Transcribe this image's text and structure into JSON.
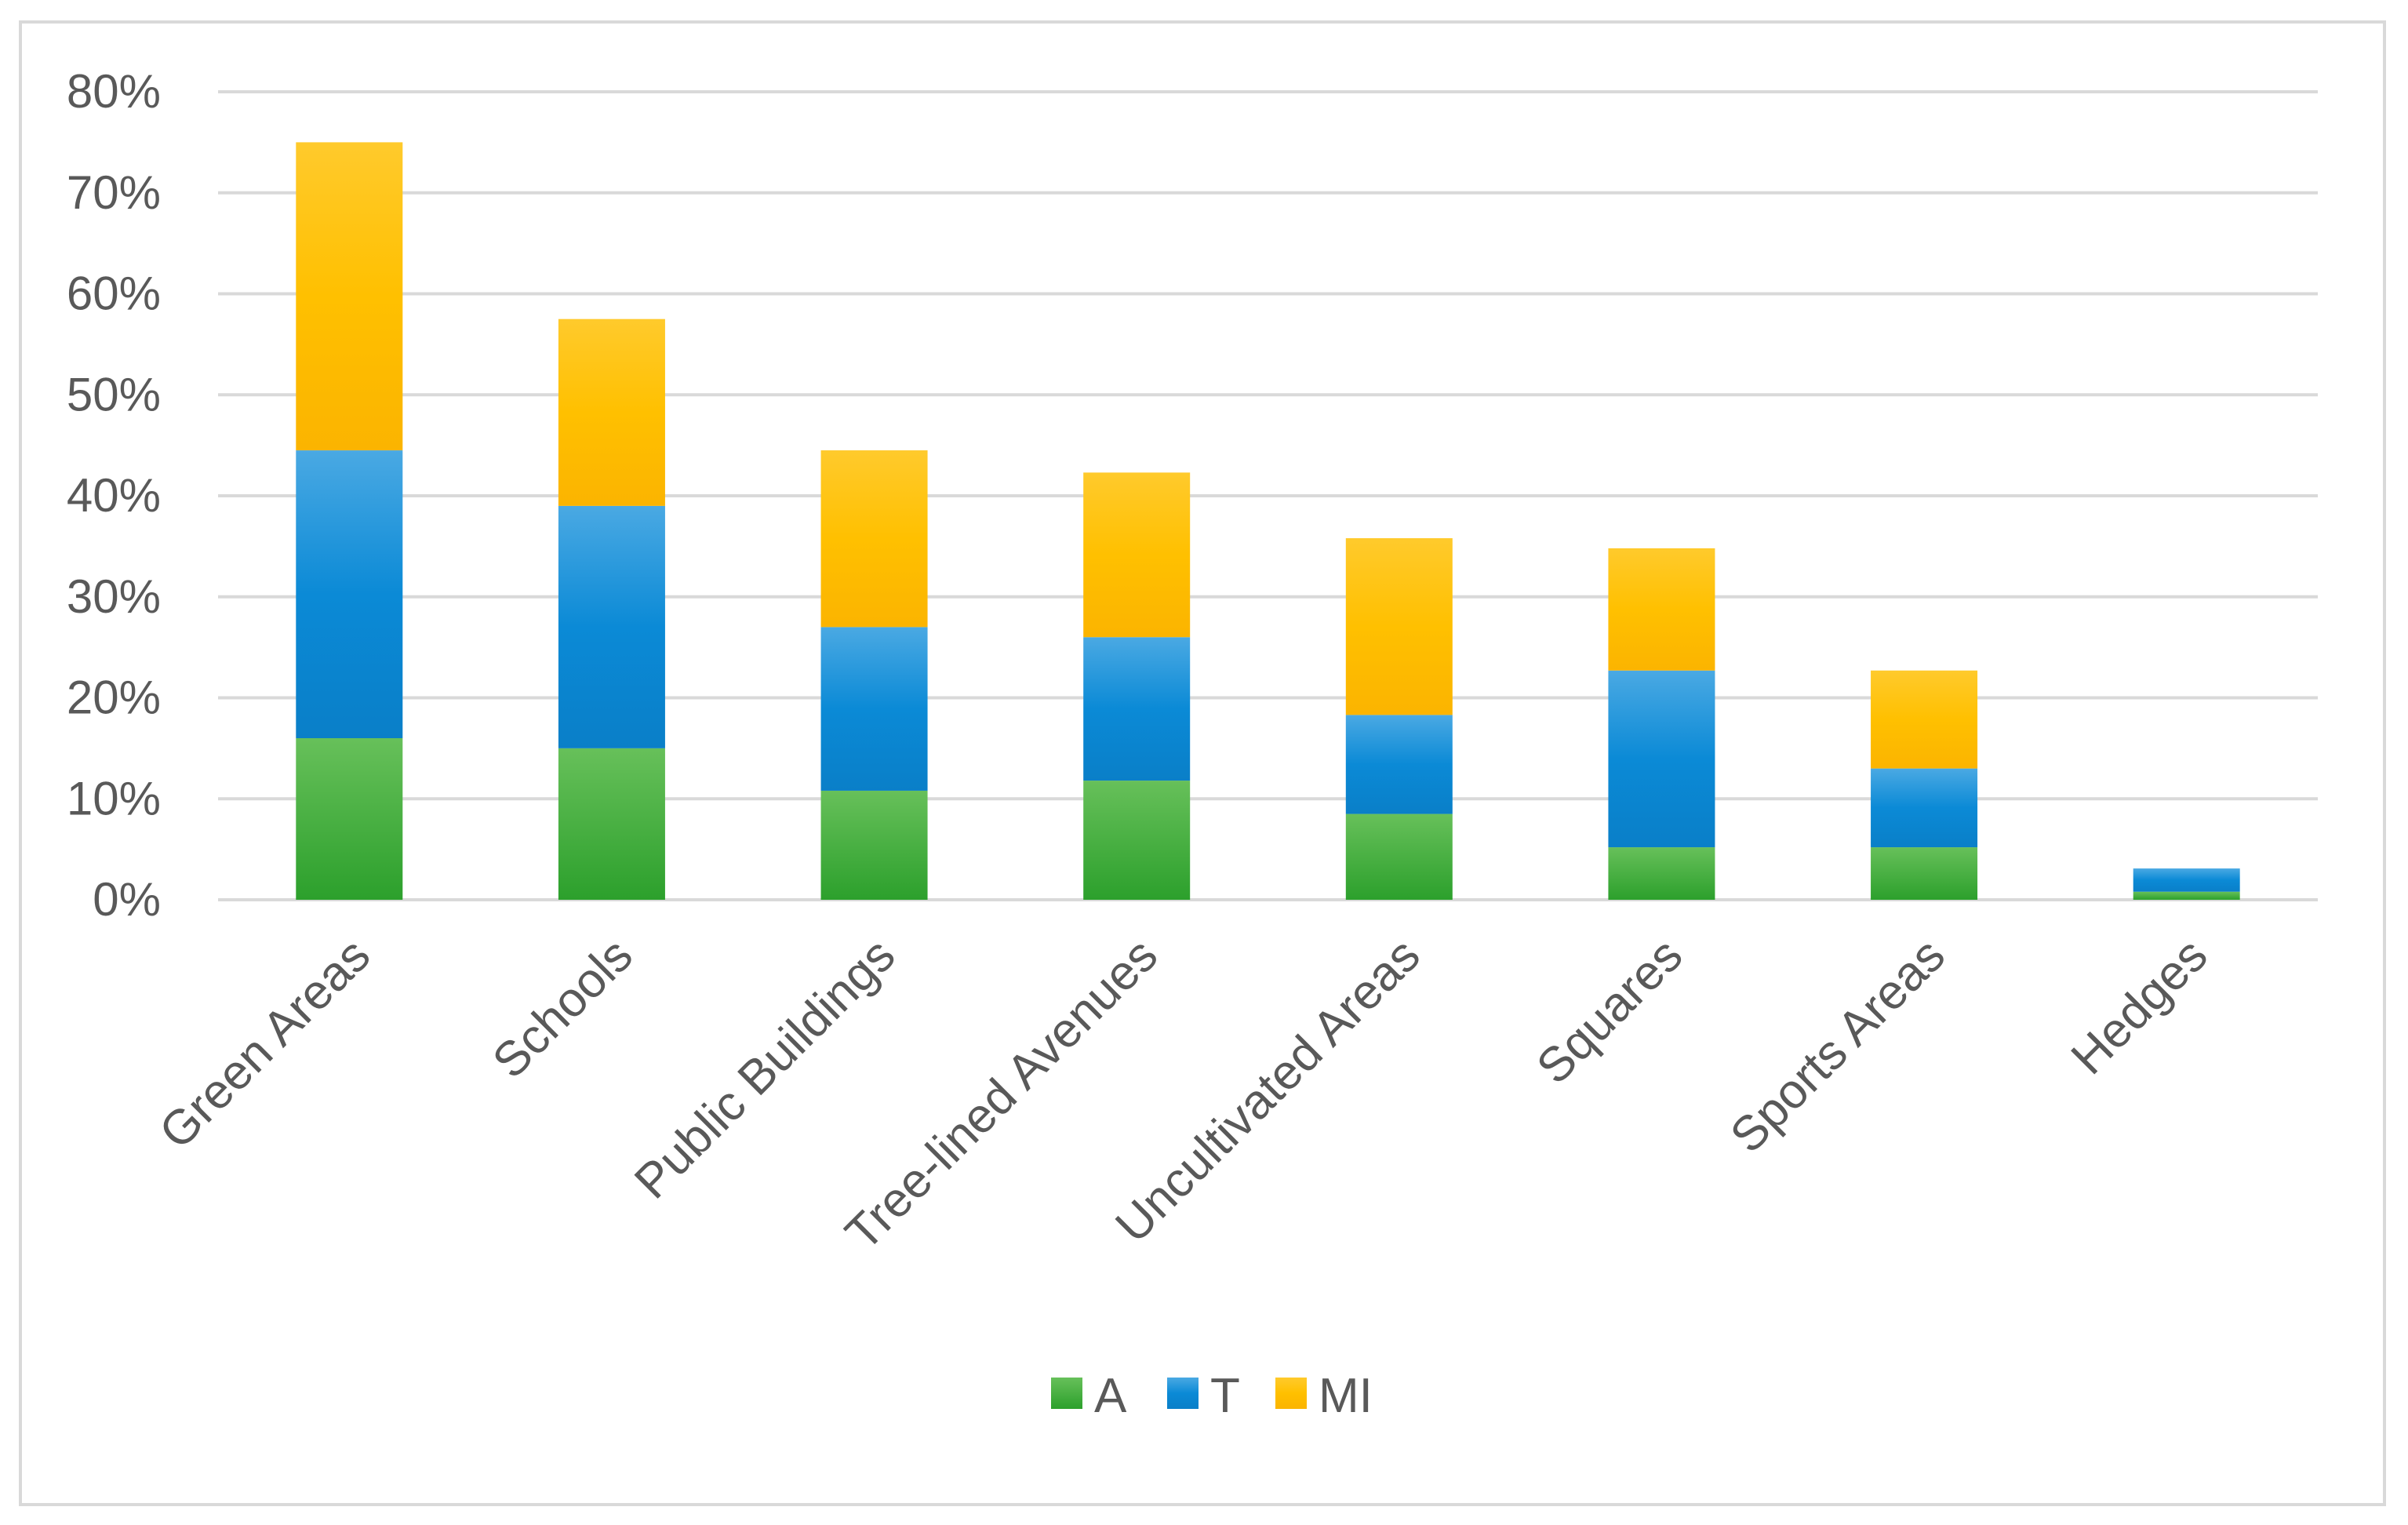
{
  "chart_data": {
    "type": "bar",
    "stacked": true,
    "categories": [
      "Green Areas",
      "Schools",
      "Public Buildings",
      "Tree-lined Avenues",
      "Uncultivated Areas",
      "Squares",
      "Sports Areas",
      "Hedges"
    ],
    "series": [
      {
        "name": "A",
        "color": "#2ca02c",
        "values": [
          16,
          15,
          10.8,
          11.8,
          8.5,
          5.2,
          5.2,
          0.8
        ]
      },
      {
        "name": "T",
        "color": "#1a8fd8",
        "values": [
          28.5,
          24,
          16.2,
          14.2,
          9.8,
          17.5,
          7.8,
          2.3
        ]
      },
      {
        "name": "MI",
        "color": "#ffc000",
        "values": [
          30.5,
          18.5,
          17.5,
          16.3,
          17.5,
          12.1,
          9.7,
          0
        ]
      }
    ],
    "ylim": [
      0,
      80
    ],
    "yticks": [
      0,
      10,
      20,
      30,
      40,
      50,
      60,
      70,
      80
    ],
    "ytick_labels": [
      "0%",
      "10%",
      "20%",
      "30%",
      "40%",
      "50%",
      "60%",
      "70%",
      "80%"
    ],
    "grid": true,
    "legend_position": "bottom"
  }
}
